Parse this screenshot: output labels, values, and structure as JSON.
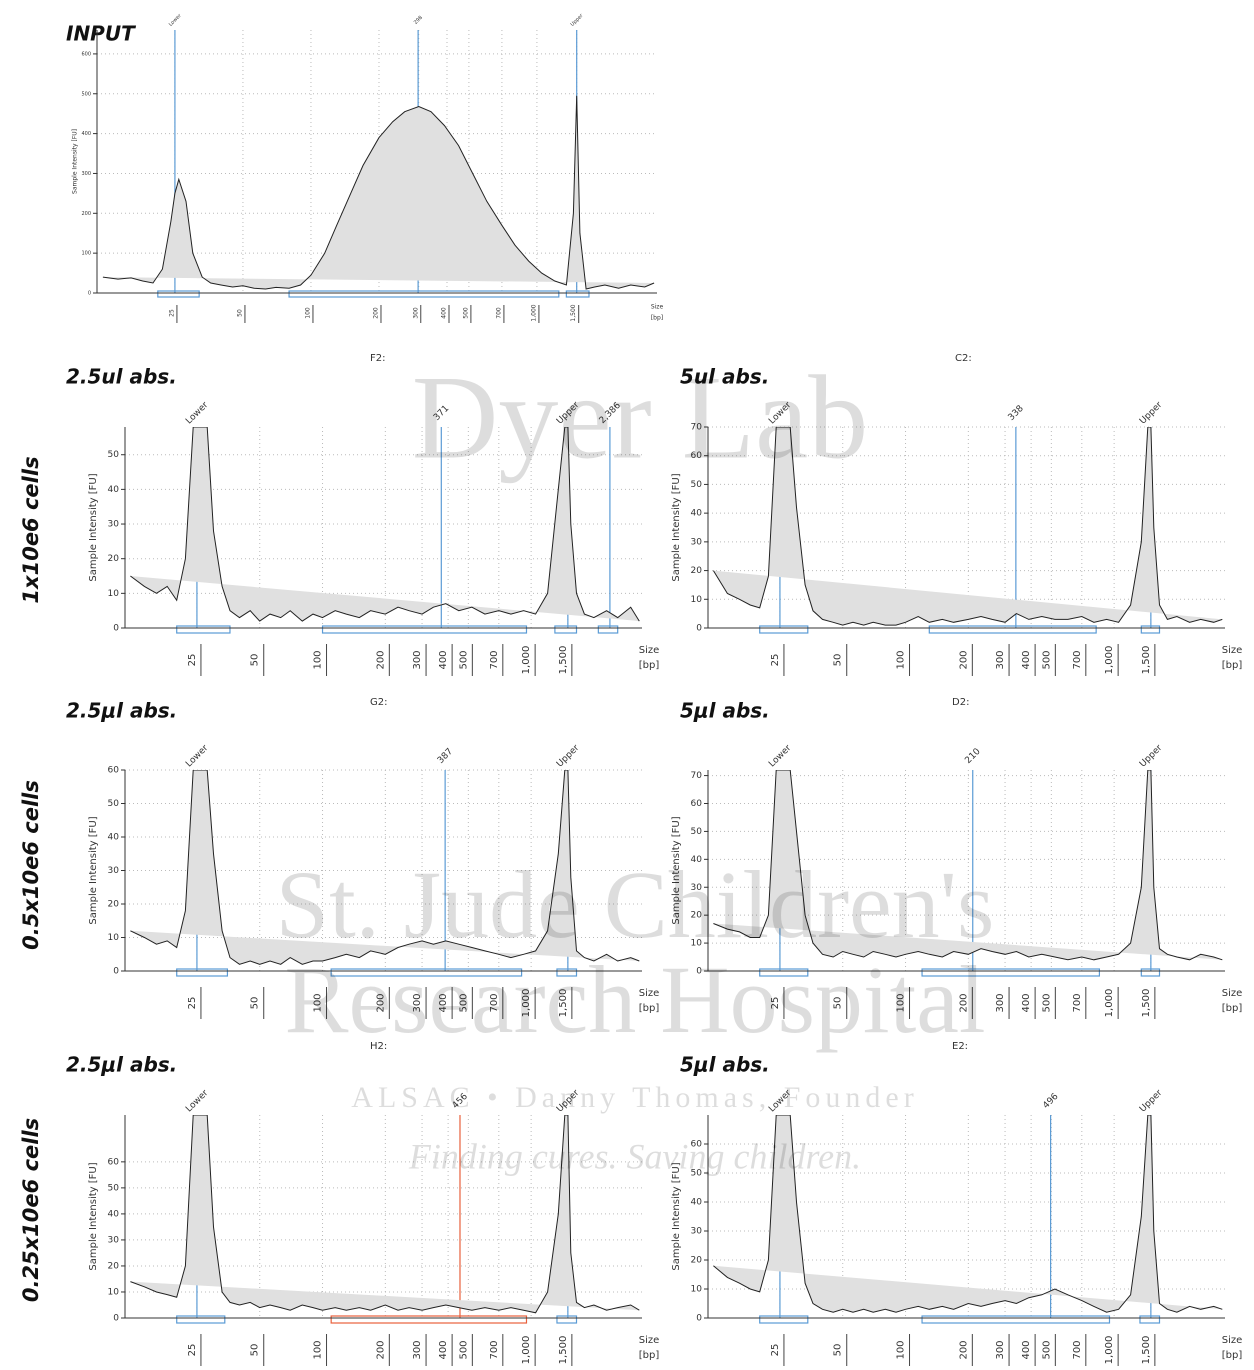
{
  "row_labels": [
    "1x10e6 cells",
    "0.5x10e6 cells",
    "0.25x10e6 cells"
  ],
  "watermark": [
    "Dyer Lab",
    "St. Jude Children's",
    "Research Hospital",
    "ALSAC • Danny Thomas, Founder",
    "Finding cures. Saving children."
  ],
  "chart_data": [
    {
      "type": "area",
      "title": "INPUT",
      "ylabel": "Sample Intensity [FU]",
      "xlabel": "Size",
      "xunit": "[bp]",
      "xscale": "log",
      "grid": true,
      "color": "#e0e0e0",
      "line_color": "#222222",
      "marker_color": "#5b9bd5",
      "xlim": [
        11.3,
        3400
      ],
      "xticks": [
        25,
        50,
        100,
        200,
        300,
        400,
        500,
        700,
        {
          "value": 1000,
          "label": "1,000"
        },
        {
          "value": 1500,
          "label": "1,500"
        }
      ],
      "ylim": [
        0,
        660
      ],
      "yticks": [
        0,
        100,
        200,
        300,
        400,
        500,
        600
      ],
      "x": [
        12,
        14,
        16,
        18,
        20,
        22,
        24,
        25,
        26,
        28,
        30,
        33,
        36,
        40,
        45,
        50,
        56,
        63,
        70,
        80,
        90,
        100,
        115,
        130,
        150,
        170,
        200,
        230,
        260,
        300,
        340,
        390,
        450,
        520,
        600,
        700,
        800,
        920,
        1050,
        1200,
        1350,
        1450,
        1500,
        1550,
        1650,
        1800,
        2000,
        2300,
        2600,
        3000,
        3300
      ],
      "values": [
        40,
        35,
        38,
        30,
        25,
        60,
        180,
        250,
        285,
        230,
        100,
        40,
        25,
        20,
        15,
        18,
        12,
        10,
        14,
        12,
        20,
        45,
        100,
        170,
        250,
        320,
        390,
        430,
        455,
        468,
        455,
        420,
        370,
        300,
        230,
        170,
        120,
        80,
        50,
        30,
        20,
        200,
        495,
        150,
        10,
        15,
        20,
        12,
        20,
        15,
        25
      ],
      "markers": [
        {
          "x": 25,
          "label": "Lower"
        },
        {
          "x": 298
        },
        {
          "x": 1500,
          "label": "Upper"
        }
      ],
      "regions": [
        {
          "from": 21,
          "to": 32
        },
        {
          "from": 80,
          "to": 1250
        },
        {
          "from": 1350,
          "to": 1700
        }
      ]
    },
    {
      "type": "area",
      "title": "2.5ul abs.",
      "subtitle": "F2:",
      "ylabel": "Sample Intensity [FU]",
      "xlabel": "Size",
      "xunit": "[bp]",
      "xscale": "log",
      "grid": true,
      "color": "#e0e0e0",
      "line_color": "#222222",
      "marker_color": "#5b9bd5",
      "xlim": [
        11.3,
        3400
      ],
      "xticks": [
        25,
        50,
        100,
        200,
        300,
        400,
        500,
        700,
        {
          "value": 1000,
          "label": "1,000"
        },
        {
          "value": 1500,
          "label": "1,500"
        }
      ],
      "ylim": [
        0,
        58
      ],
      "yticks": [
        0,
        10,
        20,
        30,
        40,
        50
      ],
      "x": [
        12,
        14,
        16,
        18,
        20,
        22,
        24,
        25,
        26,
        28,
        30,
        33,
        36,
        40,
        45,
        50,
        56,
        63,
        70,
        80,
        90,
        100,
        115,
        130,
        150,
        170,
        200,
        230,
        260,
        300,
        340,
        390,
        450,
        520,
        600,
        700,
        800,
        920,
        1050,
        1200,
        1350,
        1450,
        1500,
        1550,
        1650,
        1800,
        2000,
        2300,
        2600,
        3000,
        3300
      ],
      "values": [
        15,
        12,
        10,
        12,
        8,
        20,
        58,
        58,
        58,
        58,
        28,
        12,
        5,
        3,
        5,
        2,
        4,
        3,
        5,
        2,
        4,
        3,
        5,
        4,
        3,
        5,
        4,
        6,
        5,
        4,
        6,
        7,
        5,
        6,
        4,
        5,
        4,
        5,
        4,
        10,
        40,
        58,
        58,
        30,
        10,
        4,
        3,
        5,
        3,
        6,
        2
      ],
      "markers": [
        {
          "x": 25,
          "label": "Lower"
        },
        {
          "x": 371
        },
        {
          "x": 1500,
          "label": "Upper"
        },
        {
          "x": 2386,
          "label": "2,386"
        }
      ],
      "regions": [
        {
          "from": 20,
          "to": 36
        },
        {
          "from": 100,
          "to": 950
        },
        {
          "from": 1300,
          "to": 1650
        },
        {
          "from": 2100,
          "to": 2600
        }
      ]
    },
    {
      "type": "area",
      "title": "5ul abs.",
      "subtitle": "C2:",
      "ylabel": "Sample Intensity [FU]",
      "xlabel": "Size",
      "xunit": "[bp]",
      "xscale": "log",
      "grid": true,
      "color": "#e0e0e0",
      "line_color": "#222222",
      "marker_color": "#5b9bd5",
      "xlim": [
        11.3,
        3400
      ],
      "xticks": [
        25,
        50,
        100,
        200,
        300,
        400,
        500,
        700,
        {
          "value": 1000,
          "label": "1,000"
        },
        {
          "value": 1500,
          "label": "1,500"
        }
      ],
      "ylim": [
        0,
        70
      ],
      "yticks": [
        0,
        10,
        20,
        30,
        40,
        50,
        60,
        70
      ],
      "x": [
        12,
        14,
        16,
        18,
        20,
        22,
        24,
        25,
        26,
        28,
        30,
        33,
        36,
        40,
        45,
        50,
        56,
        63,
        70,
        80,
        90,
        100,
        115,
        130,
        150,
        170,
        200,
        230,
        260,
        300,
        340,
        390,
        450,
        520,
        600,
        700,
        800,
        920,
        1050,
        1200,
        1350,
        1450,
        1500,
        1550,
        1650,
        1800,
        2000,
        2300,
        2600,
        3000,
        3300
      ],
      "values": [
        20,
        12,
        10,
        8,
        7,
        18,
        70,
        70,
        70,
        70,
        42,
        15,
        6,
        3,
        2,
        1,
        2,
        1,
        2,
        1,
        1,
        2,
        4,
        2,
        3,
        2,
        3,
        4,
        3,
        2,
        5,
        3,
        4,
        3,
        3,
        4,
        2,
        3,
        2,
        8,
        30,
        70,
        70,
        35,
        8,
        3,
        4,
        2,
        3,
        2,
        3
      ],
      "markers": [
        {
          "x": 25,
          "label": "Lower"
        },
        {
          "x": 338
        },
        {
          "x": 1500,
          "label": "Upper"
        }
      ],
      "regions": [
        {
          "from": 20,
          "to": 34
        },
        {
          "from": 130,
          "to": 820
        },
        {
          "from": 1350,
          "to": 1650
        }
      ]
    },
    {
      "type": "area",
      "title": "2.5μl abs.",
      "subtitle": "G2:",
      "ylabel": "Sample Intensity [FU]",
      "xlabel": "Size",
      "xunit": "[bp]",
      "xscale": "log",
      "grid": true,
      "color": "#e0e0e0",
      "line_color": "#222222",
      "marker_color": "#5b9bd5",
      "xlim": [
        11.3,
        3400
      ],
      "xticks": [
        25,
        50,
        100,
        200,
        300,
        400,
        500,
        700,
        {
          "value": 1000,
          "label": "1,000"
        },
        {
          "value": 1500,
          "label": "1,500"
        }
      ],
      "ylim": [
        0,
        60
      ],
      "yticks": [
        0,
        10,
        20,
        30,
        40,
        50,
        60
      ],
      "x": [
        12,
        14,
        16,
        18,
        20,
        22,
        24,
        25,
        26,
        28,
        30,
        33,
        36,
        40,
        45,
        50,
        56,
        63,
        70,
        80,
        90,
        100,
        115,
        130,
        150,
        170,
        200,
        230,
        260,
        300,
        340,
        390,
        450,
        520,
        600,
        700,
        800,
        920,
        1050,
        1200,
        1350,
        1450,
        1500,
        1550,
        1650,
        1800,
        2000,
        2300,
        2600,
        3000,
        3300
      ],
      "values": [
        12,
        10,
        8,
        9,
        7,
        18,
        60,
        60,
        60,
        60,
        35,
        12,
        4,
        2,
        3,
        2,
        3,
        2,
        4,
        2,
        3,
        3,
        4,
        5,
        4,
        6,
        5,
        7,
        8,
        9,
        8,
        9,
        8,
        7,
        6,
        5,
        4,
        5,
        6,
        12,
        35,
        60,
        60,
        28,
        6,
        4,
        3,
        5,
        3,
        4,
        3
      ],
      "markers": [
        {
          "x": 25,
          "label": "Lower"
        },
        {
          "x": 387
        },
        {
          "x": 1500,
          "label": "Upper"
        }
      ],
      "regions": [
        {
          "from": 20,
          "to": 35
        },
        {
          "from": 110,
          "to": 900
        },
        {
          "from": 1330,
          "to": 1650
        }
      ]
    },
    {
      "type": "area",
      "title": "5μl abs.",
      "subtitle": "D2:",
      "ylabel": "Sample Intensity [FU]",
      "xlabel": "Size",
      "xunit": "[bp]",
      "xscale": "log",
      "grid": true,
      "color": "#e0e0e0",
      "line_color": "#222222",
      "marker_color": "#5b9bd5",
      "xlim": [
        11.3,
        3400
      ],
      "xticks": [
        25,
        50,
        100,
        200,
        300,
        400,
        500,
        700,
        {
          "value": 1000,
          "label": "1,000"
        },
        {
          "value": 1500,
          "label": "1,500"
        }
      ],
      "ylim": [
        0,
        72
      ],
      "yticks": [
        0,
        10,
        20,
        30,
        40,
        50,
        60,
        70
      ],
      "x": [
        12,
        14,
        16,
        18,
        20,
        22,
        24,
        25,
        26,
        28,
        30,
        33,
        36,
        40,
        45,
        50,
        56,
        63,
        70,
        80,
        90,
        100,
        115,
        130,
        150,
        170,
        200,
        230,
        260,
        300,
        340,
        390,
        450,
        520,
        600,
        700,
        800,
        920,
        1050,
        1200,
        1350,
        1450,
        1500,
        1550,
        1650,
        1800,
        2000,
        2300,
        2600,
        3000,
        3300
      ],
      "values": [
        17,
        15,
        14,
        12,
        12,
        20,
        72,
        72,
        72,
        72,
        50,
        20,
        10,
        6,
        5,
        7,
        6,
        5,
        7,
        6,
        5,
        6,
        7,
        6,
        5,
        7,
        6,
        8,
        7,
        6,
        7,
        5,
        6,
        5,
        4,
        5,
        4,
        5,
        6,
        10,
        30,
        72,
        72,
        30,
        8,
        6,
        5,
        4,
        6,
        5,
        4
      ],
      "markers": [
        {
          "x": 25,
          "label": "Lower"
        },
        {
          "x": 210
        },
        {
          "x": 1500,
          "label": "Upper"
        }
      ],
      "regions": [
        {
          "from": 20,
          "to": 34
        },
        {
          "from": 120,
          "to": 850
        },
        {
          "from": 1350,
          "to": 1650
        }
      ]
    },
    {
      "type": "area",
      "title": "2.5μl abs.",
      "subtitle": "H2:",
      "ylabel": "Sample Intensity [FU]",
      "xlabel": "Size",
      "xunit": "[bp]",
      "xscale": "log",
      "grid": true,
      "color": "#e0e0e0",
      "line_color": "#222222",
      "marker_color": "#5b9bd5",
      "xlim": [
        11.3,
        3400
      ],
      "xticks": [
        25,
        50,
        100,
        200,
        300,
        400,
        500,
        700,
        {
          "value": 1000,
          "label": "1,000"
        },
        {
          "value": 1500,
          "label": "1,500"
        }
      ],
      "ylim": [
        0,
        78
      ],
      "yticks": [
        0,
        10,
        20,
        30,
        40,
        50,
        60
      ],
      "x": [
        12,
        14,
        16,
        18,
        20,
        22,
        24,
        25,
        26,
        28,
        30,
        33,
        36,
        40,
        45,
        50,
        56,
        63,
        70,
        80,
        90,
        100,
        115,
        130,
        150,
        170,
        200,
        230,
        260,
        300,
        340,
        390,
        450,
        520,
        600,
        700,
        800,
        920,
        1050,
        1200,
        1350,
        1450,
        1500,
        1550,
        1650,
        1800,
        2000,
        2300,
        2600,
        3000,
        3300
      ],
      "values": [
        14,
        12,
        10,
        9,
        8,
        20,
        78,
        78,
        78,
        78,
        35,
        10,
        6,
        5,
        6,
        4,
        5,
        4,
        3,
        5,
        4,
        3,
        4,
        3,
        4,
        3,
        5,
        3,
        4,
        3,
        4,
        5,
        4,
        3,
        4,
        3,
        4,
        3,
        2,
        10,
        40,
        78,
        78,
        25,
        6,
        4,
        5,
        3,
        4,
        5,
        3
      ],
      "markers": [
        {
          "x": 25,
          "label": "Lower"
        },
        {
          "x": 456,
          "color": "#e8603c"
        },
        {
          "x": 1500,
          "label": "Upper"
        }
      ],
      "regions": [
        {
          "from": 20,
          "to": 34
        },
        {
          "from": 110,
          "to": 950,
          "color": "#e8603c"
        },
        {
          "from": 1330,
          "to": 1650
        }
      ]
    },
    {
      "type": "area",
      "title": "5μl abs.",
      "subtitle": "E2:",
      "ylabel": "Sample Intensity [FU]",
      "xlabel": "Size",
      "xunit": "[bp]",
      "xscale": "log",
      "grid": true,
      "color": "#e0e0e0",
      "line_color": "#222222",
      "marker_color": "#5b9bd5",
      "xlim": [
        11.3,
        3400
      ],
      "xticks": [
        25,
        50,
        100,
        200,
        300,
        400,
        500,
        700,
        {
          "value": 1000,
          "label": "1,000"
        },
        {
          "value": 1500,
          "label": "1,500"
        }
      ],
      "ylim": [
        0,
        70
      ],
      "yticks": [
        0,
        10,
        20,
        30,
        40,
        50,
        60
      ],
      "x": [
        12,
        14,
        16,
        18,
        20,
        22,
        24,
        25,
        26,
        28,
        30,
        33,
        36,
        40,
        45,
        50,
        56,
        63,
        70,
        80,
        90,
        100,
        115,
        130,
        150,
        170,
        200,
        230,
        260,
        300,
        340,
        390,
        450,
        520,
        600,
        700,
        800,
        920,
        1050,
        1200,
        1350,
        1450,
        1500,
        1550,
        1650,
        1800,
        2000,
        2300,
        2600,
        3000,
        3300
      ],
      "values": [
        18,
        14,
        12,
        10,
        9,
        20,
        70,
        70,
        70,
        70,
        40,
        12,
        5,
        3,
        2,
        3,
        2,
        3,
        2,
        3,
        2,
        3,
        4,
        3,
        4,
        3,
        5,
        4,
        5,
        6,
        5,
        7,
        8,
        10,
        8,
        6,
        4,
        2,
        3,
        8,
        35,
        70,
        70,
        30,
        5,
        3,
        2,
        4,
        3,
        4,
        3
      ],
      "markers": [
        {
          "x": 25,
          "label": "Lower"
        },
        {
          "x": 496
        },
        {
          "x": 1500,
          "label": "Upper"
        }
      ],
      "regions": [
        {
          "from": 20,
          "to": 34
        },
        {
          "from": 120,
          "to": 950
        },
        {
          "from": 1330,
          "to": 1650
        }
      ]
    }
  ]
}
